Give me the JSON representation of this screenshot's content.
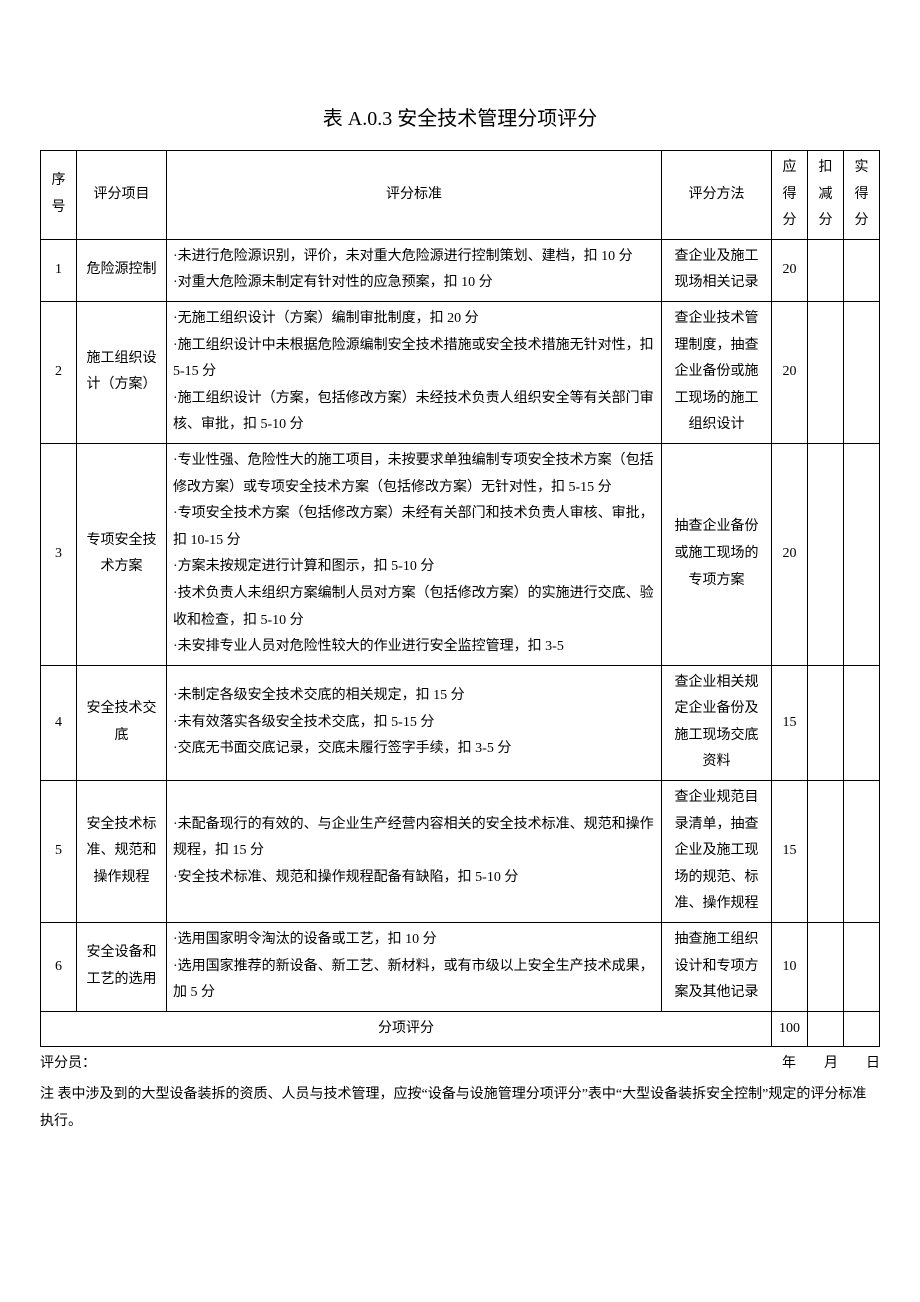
{
  "title": "表 A.0.3 安全技术管理分项评分",
  "headers": {
    "seq": "序号",
    "item": "评分项目",
    "criteria": "评分标准",
    "method": "评分方法",
    "due": "应得分",
    "deduct": "扣减分",
    "actual": "实得分"
  },
  "rows": [
    {
      "seq": "1",
      "item": "危险源控制",
      "criteria": [
        "·未进行危险源识别，评价，未对重大危险源进行控制策划、建档，扣 10 分",
        "·对重大危险源未制定有针对性的应急预案，扣 10 分"
      ],
      "method": "查企业及施工现场相关记录",
      "due": "20",
      "deduct": "",
      "actual": ""
    },
    {
      "seq": "2",
      "item": "施工组织设计（方案）",
      "criteria": [
        "·无施工组织设计（方案）编制审批制度，扣 20 分",
        "·施工组织设计中未根据危险源编制安全技术措施或安全技术措施无针对性，扣 5-15 分",
        "·施工组织设计（方案，包括修改方案）未经技术负责人组织安全等有关部门审核、审批，扣 5-10 分"
      ],
      "method": "查企业技术管理制度，抽查企业备份或施工现场的施工组织设计",
      "due": "20",
      "deduct": "",
      "actual": ""
    },
    {
      "seq": "3",
      "item": "专项安全技术方案",
      "criteria": [
        "·专业性强、危险性大的施工项目，未按要求单独编制专项安全技术方案（包括修改方案）或专项安全技术方案（包括修改方案）无针对性，扣 5-15 分",
        "·专项安全技术方案（包括修改方案）未经有关部门和技术负责人审核、审批，扣 10-15 分",
        "·方案未按规定进行计算和图示，扣 5-10 分",
        "·技术负责人未组织方案编制人员对方案（包括修改方案）的实施进行交底、验收和检查，扣 5-10 分",
        "·未安排专业人员对危险性较大的作业进行安全监控管理，扣 3-5"
      ],
      "method": "抽查企业备份或施工现场的专项方案",
      "due": "20",
      "deduct": "",
      "actual": ""
    },
    {
      "seq": "4",
      "item": "安全技术交底",
      "criteria": [
        "·未制定各级安全技术交底的相关规定，扣 15 分",
        "·未有效落实各级安全技术交底，扣 5-15 分",
        "·交底无书面交底记录，交底未履行签字手续，扣 3-5 分"
      ],
      "method": "查企业相关规定企业备份及施工现场交底资料",
      "due": "15",
      "deduct": "",
      "actual": ""
    },
    {
      "seq": "5",
      "item": "安全技术标准、规范和操作规程",
      "criteria": [
        "·未配备现行的有效的、与企业生产经营内容相关的安全技术标准、规范和操作规程，扣 15 分",
        "·安全技术标准、规范和操作规程配备有缺陷，扣 5-10 分"
      ],
      "method": "查企业规范目录清单，抽查企业及施工现场的规范、标准、操作规程",
      "due": "15",
      "deduct": "",
      "actual": ""
    },
    {
      "seq": "6",
      "item": "安全设备和工艺的选用",
      "criteria": [
        "·选用国家明令淘汰的设备或工艺，扣 10 分",
        "·选用国家推荐的新设备、新工艺、新材料，或有市级以上安全生产技术成果，加 5 分"
      ],
      "method": "抽查施工组织设计和专项方案及其他记录",
      "due": "10",
      "deduct": "",
      "actual": ""
    }
  ],
  "total": {
    "label": "分项评分",
    "value": "100"
  },
  "footer": {
    "scorer": "评分员：",
    "date": "年　　月　　日"
  },
  "note": "注 表中涉及到的大型设备装拆的资质、人员与技术管理，应按“设备与设施管理分项评分”表中“大型设备装拆安全控制”规定的评分标准执行。"
}
